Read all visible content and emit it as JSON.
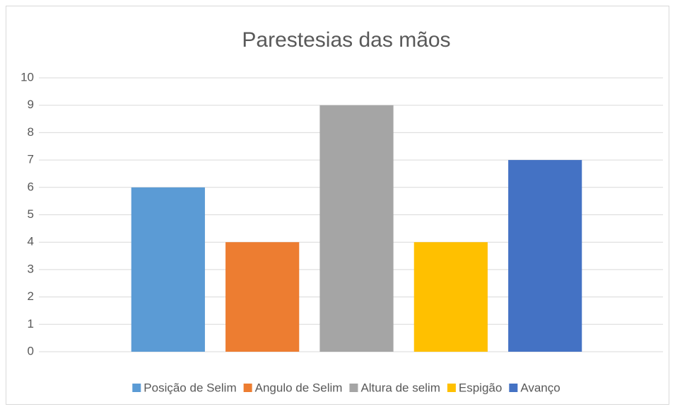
{
  "chart_data": {
    "type": "bar",
    "title": "Parestesias das mãos",
    "categories": [
      null
    ],
    "series": [
      {
        "name": "Posição de Selim",
        "color": "#5b9bd5",
        "values": [
          6
        ]
      },
      {
        "name": "Angulo de Selim",
        "color": "#ed7d31",
        "values": [
          4
        ]
      },
      {
        "name": "Altura de selim",
        "color": "#a5a5a5",
        "values": [
          9
        ]
      },
      {
        "name": "Espigão",
        "color": "#ffc000",
        "values": [
          4
        ]
      },
      {
        "name": "Avanço",
        "color": "#4472c4",
        "values": [
          7
        ]
      }
    ],
    "ylim": [
      0,
      10
    ],
    "yticks": [
      0,
      1,
      2,
      3,
      4,
      5,
      6,
      7,
      8,
      9,
      10
    ],
    "grid": true,
    "legend": "bottom"
  }
}
